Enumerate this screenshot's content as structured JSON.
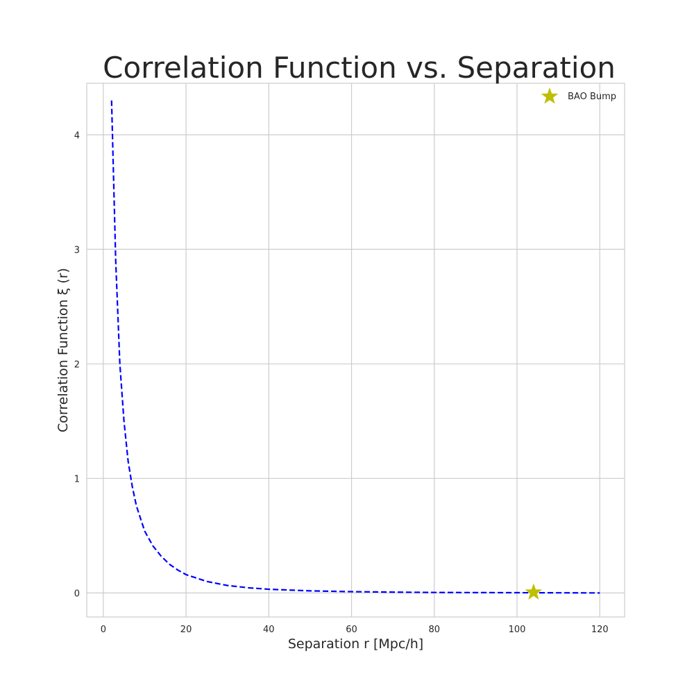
{
  "chart_data": {
    "type": "line",
    "title": "Correlation Function vs. Separation",
    "xlabel": "Separation r [Mpc/h]",
    "ylabel": "Correlation Function ξ (r)",
    "xlim": [
      -4,
      126
    ],
    "ylim": [
      -0.21,
      4.45
    ],
    "x_ticks": [
      0,
      20,
      40,
      60,
      80,
      100,
      120
    ],
    "y_ticks": [
      0,
      1,
      2,
      3,
      4
    ],
    "grid": true,
    "legend_position": "top-right",
    "series": [
      {
        "type": "line",
        "line_style": "dashed",
        "color": "#0000ff",
        "x": [
          2,
          3,
          4,
          5,
          6,
          7,
          8,
          10,
          12,
          14,
          16,
          18,
          20,
          25,
          30,
          35,
          40,
          50,
          60,
          70,
          80,
          90,
          100,
          110,
          120
        ],
        "y": [
          4.3,
          2.9,
          2.0,
          1.5,
          1.15,
          0.93,
          0.76,
          0.54,
          0.41,
          0.32,
          0.25,
          0.2,
          0.16,
          0.1,
          0.065,
          0.045,
          0.032,
          0.018,
          0.011,
          0.007,
          0.004,
          0.003,
          0.002,
          0.001,
          0.0
        ]
      },
      {
        "name": "BAO Bump",
        "type": "scatter",
        "marker": "star",
        "color": "#bfbf00",
        "x": [
          104
        ],
        "y": [
          0.005
        ]
      }
    ]
  }
}
